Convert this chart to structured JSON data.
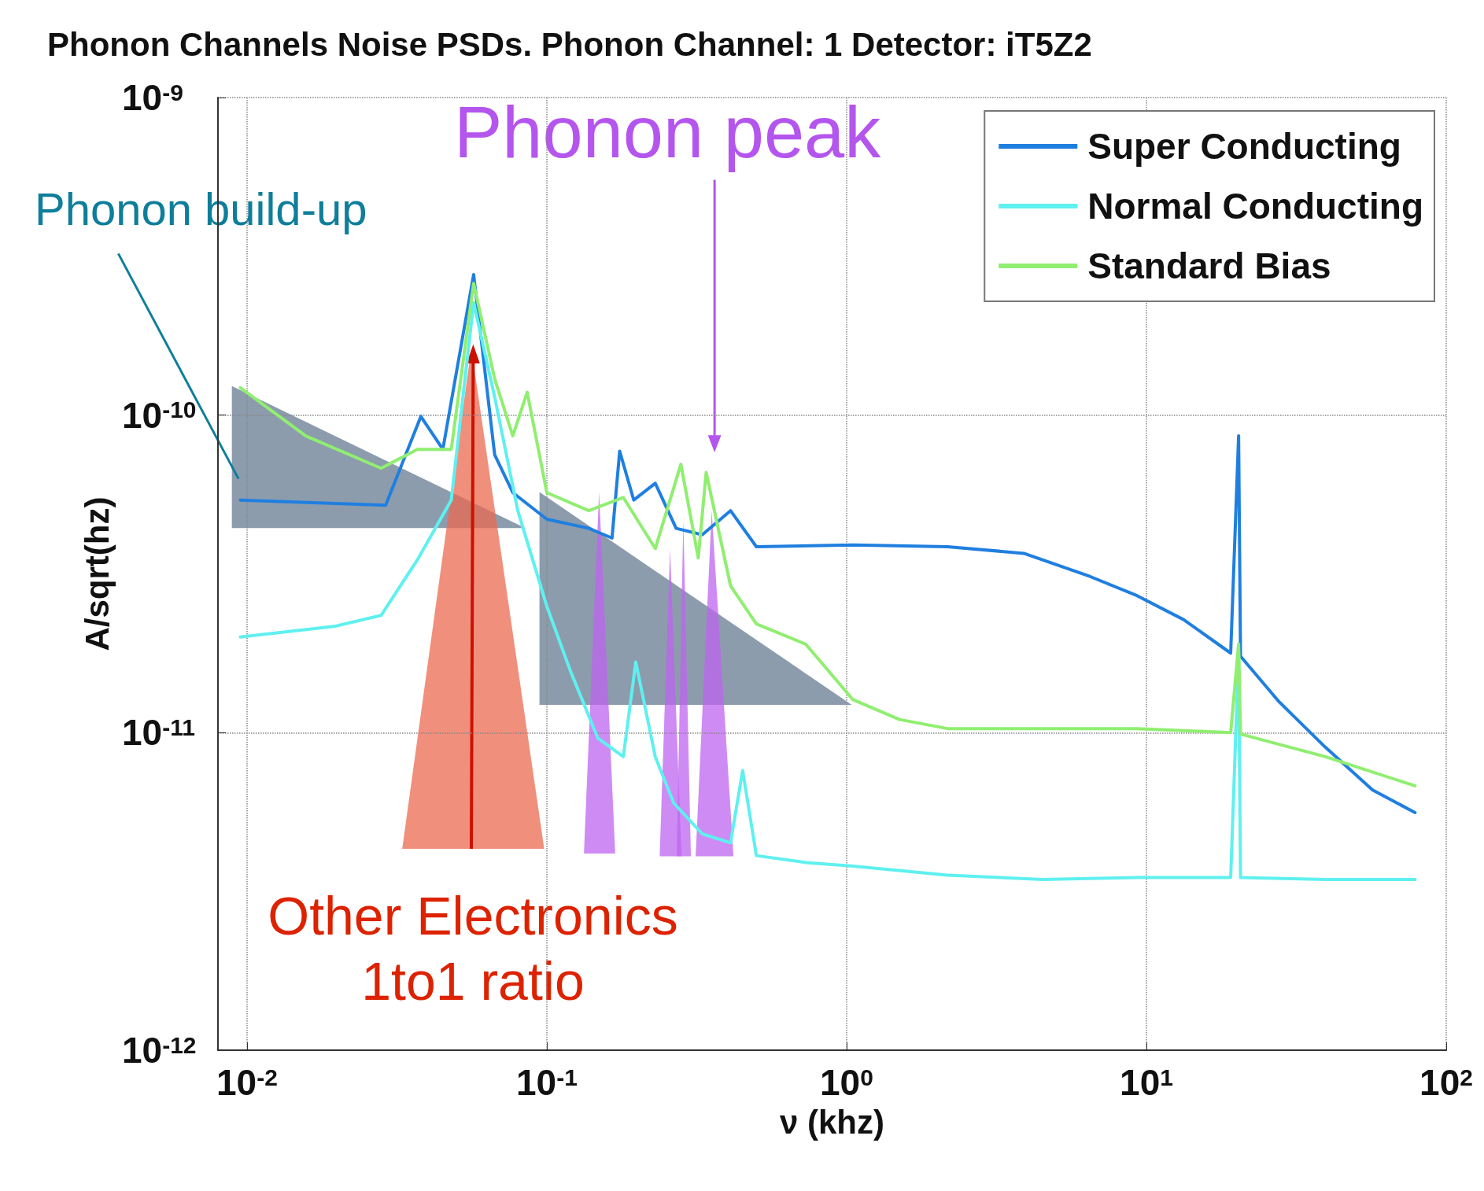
{
  "chart_data": {
    "type": "line",
    "title": "Phonon Channels Noise PSDs. Phonon Channel: 1 Detector: iT5Z2",
    "xlabel": "ν (khz)",
    "ylabel": "A/sqrt(hz)",
    "log": "xy",
    "grid": true,
    "legend": "top right",
    "marker": "none",
    "line_style": "solid",
    "xlim": [
      0.008,
      100
    ],
    "ylim": [
      1e-12,
      1e-09
    ],
    "xticks": [
      {
        "value": 0.01,
        "label": "10$^{-2}$"
      },
      {
        "value": 0.1,
        "label": "10$^{-1}$"
      },
      {
        "value": 1,
        "label": "10$^{0}$"
      },
      {
        "value": 10,
        "label": "10$^{1}$"
      },
      {
        "value": 100,
        "label": "10$^{2}$"
      }
    ],
    "yticks": [
      {
        "value": 1e-12,
        "label": "10$^{-12}$"
      },
      {
        "value": 1e-11,
        "label": "10$^{-11}$"
      },
      {
        "value": 1e-10,
        "label": "10$^{-10}$"
      },
      {
        "value": 1e-09,
        "label": "10$^{-9}$"
      }
    ],
    "annotations": [
      "Phonon build-up",
      "Phonon peak",
      "Other Electronics\n1to1 ratio"
    ],
    "series": [
      {
        "name": "Super Conducting",
        "color": "#1f7fe0",
        "x": [
          0.0095,
          0.029,
          0.038,
          0.045,
          0.057,
          0.067,
          0.077,
          0.1,
          0.138,
          0.165,
          0.175,
          0.195,
          0.23,
          0.27,
          0.33,
          0.41,
          0.5,
          1.05,
          2.17,
          3.9,
          6.5,
          9.3,
          13.3,
          19.1,
          20.3,
          20.6,
          27.5,
          39.5,
          56.8,
          78.7
        ],
        "values": [
          5.4e-11,
          5.2e-11,
          9.9e-11,
          7.8e-11,
          2.77e-10,
          7.5e-11,
          5.7e-11,
          4.7e-11,
          4.4e-11,
          4.1e-11,
          7.7e-11,
          5.4e-11,
          6.1e-11,
          4.4e-11,
          4.2e-11,
          5e-11,
          3.85e-11,
          3.9e-11,
          3.85e-11,
          3.67e-11,
          3.1e-11,
          2.7e-11,
          2.27e-11,
          1.78e-11,
          8.6e-11,
          1.74e-11,
          1.26e-11,
          9e-12,
          6.6e-12,
          5.6e-12
        ]
      },
      {
        "name": "Normal Conducting",
        "color": "#5ff0f0",
        "x": [
          0.0095,
          0.0195,
          0.028,
          0.037,
          0.048,
          0.057,
          0.067,
          0.08,
          0.1,
          0.12,
          0.148,
          0.18,
          0.198,
          0.23,
          0.265,
          0.33,
          0.41,
          0.45,
          0.5,
          0.73,
          1.05,
          2.17,
          4.5,
          9.3,
          19.1,
          20.3,
          20.6,
          39.5,
          78.7
        ],
        "values": [
          2e-11,
          2.16e-11,
          2.34e-11,
          3.5e-11,
          5.4e-11,
          2.26e-10,
          1.14e-10,
          5e-11,
          2.5e-11,
          1.56e-11,
          9.6e-12,
          8.4e-12,
          1.67e-11,
          8.4e-12,
          6e-12,
          4.8e-12,
          4.5e-12,
          7.6e-12,
          4.1e-12,
          3.9e-12,
          3.8e-12,
          3.56e-12,
          3.45e-12,
          3.5e-12,
          3.5e-12,
          1.78e-11,
          3.5e-12,
          3.45e-12,
          3.45e-12
        ]
      },
      {
        "name": "Standard Bias",
        "color": "#90ee70",
        "x": [
          0.0095,
          0.0157,
          0.028,
          0.037,
          0.048,
          0.057,
          0.067,
          0.077,
          0.086,
          0.1,
          0.138,
          0.18,
          0.23,
          0.28,
          0.32,
          0.34,
          0.41,
          0.5,
          0.73,
          1.05,
          1.5,
          2.17,
          4.5,
          9.3,
          19.1,
          20.3,
          20.6,
          39.5,
          78.7
        ],
        "values": [
          1.22e-10,
          8.6e-11,
          6.8e-11,
          7.8e-11,
          7.8e-11,
          2.6e-10,
          1.3e-10,
          8.6e-11,
          1.18e-10,
          5.7e-11,
          5e-11,
          5.5e-11,
          3.8e-11,
          7e-11,
          3.55e-11,
          6.6e-11,
          2.9e-11,
          2.2e-11,
          1.9e-11,
          1.27e-11,
          1.1e-11,
          1.03e-11,
          1.03e-11,
          1.03e-11,
          1e-11,
          1.9e-11,
          9.9e-12,
          8.4e-12,
          6.8e-12
        ]
      }
    ]
  }
}
